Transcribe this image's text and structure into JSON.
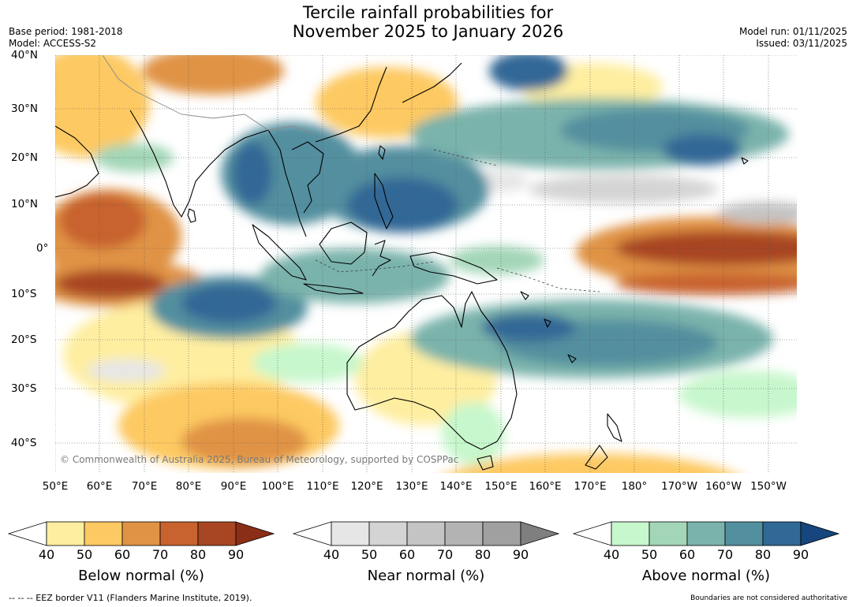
{
  "title": {
    "line1": "Tercile rainfall probabilities for",
    "line2": "November 2025 to January 2026"
  },
  "meta": {
    "base_period": "Base period: 1981-2018",
    "model": "Model: ACCESS-S2",
    "model_run": "Model run: 01/11/2025",
    "issued": "Issued: 03/11/2025"
  },
  "map": {
    "lat_labels": [
      "40°N",
      "30°N",
      "20°N",
      "10°N",
      "0°",
      "10°S",
      "20°S",
      "30°S",
      "40°S"
    ],
    "lon_labels": [
      "50°E",
      "60°E",
      "70°E",
      "80°E",
      "90°E",
      "100°E",
      "110°E",
      "120°E",
      "130°E",
      "140°E",
      "150°E",
      "160°E",
      "170°E",
      "180°",
      "170°W",
      "160°W",
      "150°W"
    ],
    "copyright": "© Commonwealth of Australia 2025, Bureau of Meteorology, supported by COSPPac"
  },
  "colorbars": [
    {
      "title": "Below normal (%)",
      "ticks": [
        "40",
        "50",
        "60",
        "70",
        "80",
        "90"
      ],
      "colors": [
        "#ffffff",
        "#feeea0",
        "#fdc962",
        "#e09345",
        "#c8622e",
        "#a84522",
        "#8a2e18"
      ]
    },
    {
      "title": "Near normal (%)",
      "ticks": [
        "40",
        "50",
        "60",
        "70",
        "80",
        "90"
      ],
      "colors": [
        "#ffffff",
        "#e6e6e6",
        "#d4d4d4",
        "#c4c4c4",
        "#b3b3b3",
        "#a0a0a0",
        "#7f7f7f"
      ]
    },
    {
      "title": "Above normal (%)",
      "ticks": [
        "40",
        "50",
        "60",
        "70",
        "80",
        "90"
      ],
      "colors": [
        "#ffffff",
        "#c7f7cc",
        "#a3d6b8",
        "#7ab3ab",
        "#528f9f",
        "#306896",
        "#16467d"
      ]
    }
  ],
  "footer": {
    "eez_note": "--  --  -- EEZ border V11 (Flanders Marine Institute, 2019).",
    "boundary_note": "Boundaries are not considered authoritative"
  }
}
